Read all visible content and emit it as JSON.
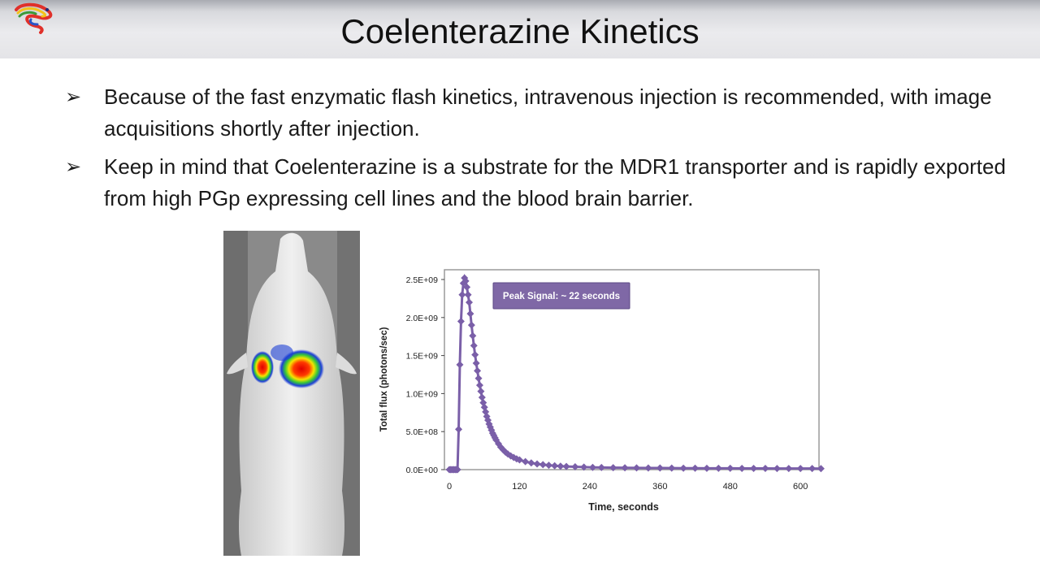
{
  "slide": {
    "title": "Coelenterazine Kinetics",
    "bullets": [
      "Because of the fast enzymatic flash kinetics, intravenous injection is recommended, with image acquisitions shortly after injection.",
      "Keep in mind that Coelenterazine is a substrate for the MDR1 transporter and is rapidly exported from high PGp expressing cell lines and the blood brain barrier."
    ],
    "bullet_marker": "➢"
  },
  "colors": {
    "series": "#7a5fa8",
    "annotation_bg": "#7f68a6",
    "axis": "#444444"
  },
  "chart_data": {
    "type": "scatter",
    "xlabel": "Time, seconds",
    "ylabel": "Total flux (photons/sec)",
    "xlim": [
      0,
      640
    ],
    "ylim": [
      0,
      2500000000.0
    ],
    "x_ticks": [
      0,
      120,
      240,
      360,
      480,
      600
    ],
    "y_ticks": [
      0,
      500000000.0,
      1000000000.0,
      1500000000.0,
      2000000000.0,
      2500000000.0
    ],
    "y_tick_labels": [
      "0.0E+00",
      "5.0E+08",
      "1.0E+09",
      "1.5E+09",
      "2.0E+09",
      "2.5E+09"
    ],
    "grid": false,
    "annotation": "Peak Signal: ~ 22 seconds",
    "series": [
      {
        "x": [
          0,
          2,
          4,
          6,
          8,
          10,
          12,
          14,
          16,
          18,
          20,
          22,
          24,
          26,
          28,
          30,
          32,
          34,
          36,
          38,
          40,
          42,
          44,
          46,
          48,
          50,
          52,
          54,
          56,
          58,
          60,
          62,
          64,
          66,
          68,
          70,
          72,
          74,
          76,
          78,
          80,
          84,
          88,
          92,
          96,
          100,
          105,
          110,
          115,
          120,
          130,
          140,
          150,
          160,
          170,
          180,
          190,
          200,
          215,
          230,
          245,
          260,
          280,
          300,
          320,
          340,
          360,
          380,
          400,
          420,
          440,
          460,
          480,
          500,
          520,
          540,
          560,
          580,
          600,
          620,
          635
        ],
        "y": [
          0,
          0,
          0,
          0,
          0,
          0,
          0,
          0,
          530000000.0,
          1380000000.0,
          1950000000.0,
          2300000000.0,
          2450000000.0,
          2520000000.0,
          2480000000.0,
          2400000000.0,
          2300000000.0,
          2200000000.0,
          2050000000.0,
          1900000000.0,
          1760000000.0,
          1630000000.0,
          1510000000.0,
          1400000000.0,
          1300000000.0,
          1200000000.0,
          1110000000.0,
          1030000000.0,
          950000000.0,
          880000000.0,
          820000000.0,
          760000000.0,
          700000000.0,
          650000000.0,
          600000000.0,
          560000000.0,
          520000000.0,
          480000000.0,
          450000000.0,
          420000000.0,
          390000000.0,
          340000000.0,
          295000000.0,
          260000000.0,
          230000000.0,
          205000000.0,
          180000000.0,
          160000000.0,
          142000000.0,
          128000000.0,
          105000000.0,
          88000000.0,
          75000000.0,
          65000000.0,
          57000000.0,
          51000000.0,
          46000000.0,
          42000000.0,
          37000000.0,
          33000000.0,
          30000000.0,
          28000000.0,
          26000000.0,
          24000000.0,
          23000000.0,
          22000000.0,
          21000000.0,
          20000000.0,
          19000000.0,
          18500000.0,
          18000000.0,
          17500000.0,
          17000000.0,
          16500000.0,
          16000000.0,
          15500000.0,
          15000000.0,
          15000000.0,
          14500000.0,
          14500000.0,
          14000000.0
        ]
      }
    ]
  }
}
